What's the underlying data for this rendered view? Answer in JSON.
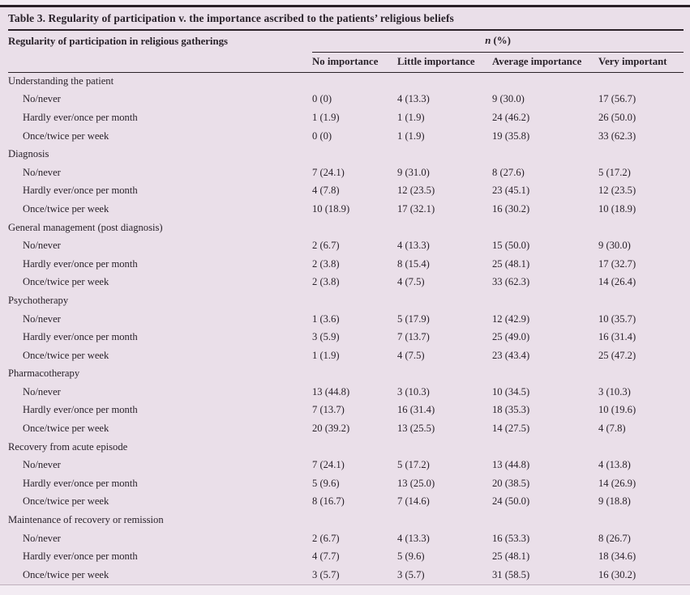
{
  "colors": {
    "page_background": "#f3ecf3",
    "table_background": "#eadfe9",
    "text": "#29222a",
    "rule": "#2a2027"
  },
  "table": {
    "title": "Table 3. Regularity of participation v. the importance ascribed to the patients’ religious beliefs",
    "lead_header": "Regularity of participation in religious gatherings",
    "n_label": {
      "italic": "n",
      "rest": " (%)"
    },
    "columns": [
      "No importance",
      "Little importance",
      "Average importance",
      "Very important"
    ],
    "sections": [
      {
        "label": "Understanding the patient",
        "rows": [
          {
            "label": "No/never",
            "values": [
              "0 (0)",
              "4 (13.3)",
              "9 (30.0)",
              "17 (56.7)"
            ]
          },
          {
            "label": "Hardly ever/once per month",
            "values": [
              "1 (1.9)",
              "1 (1.9)",
              "24 (46.2)",
              "26 (50.0)"
            ]
          },
          {
            "label": "Once/twice per week",
            "values": [
              "0 (0)",
              "1 (1.9)",
              "19 (35.8)",
              "33 (62.3)"
            ]
          }
        ]
      },
      {
        "label": "Diagnosis",
        "rows": [
          {
            "label": "No/never",
            "values": [
              "7 (24.1)",
              "9 (31.0)",
              "8 (27.6)",
              "5 (17.2)"
            ]
          },
          {
            "label": "Hardly ever/once per month",
            "values": [
              "4 (7.8)",
              "12 (23.5)",
              "23 (45.1)",
              "12 (23.5)"
            ]
          },
          {
            "label": "Once/twice per week",
            "values": [
              "10 (18.9)",
              "17 (32.1)",
              "16 (30.2)",
              "10 (18.9)"
            ]
          }
        ]
      },
      {
        "label": "General management (post diagnosis)",
        "rows": [
          {
            "label": "No/never",
            "values": [
              "2 (6.7)",
              "4 (13.3)",
              "15 (50.0)",
              "9 (30.0)"
            ]
          },
          {
            "label": "Hardly ever/once per month",
            "values": [
              "2 (3.8)",
              "8 (15.4)",
              "25 (48.1)",
              "17 (32.7)"
            ]
          },
          {
            "label": "Once/twice per week",
            "values": [
              "2 (3.8)",
              "4 (7.5)",
              "33 (62.3)",
              "14 (26.4)"
            ]
          }
        ]
      },
      {
        "label": "Psychotherapy",
        "rows": [
          {
            "label": "No/never",
            "values": [
              "1 (3.6)",
              "5 (17.9)",
              "12 (42.9)",
              "10 (35.7)"
            ]
          },
          {
            "label": "Hardly ever/once per month",
            "values": [
              "3 (5.9)",
              "7 (13.7)",
              "25 (49.0)",
              "16 (31.4)"
            ]
          },
          {
            "label": "Once/twice per week",
            "values": [
              "1 (1.9)",
              "4 (7.5)",
              "23 (43.4)",
              "25 (47.2)"
            ]
          }
        ]
      },
      {
        "label": "Pharmacotherapy",
        "rows": [
          {
            "label": "No/never",
            "values": [
              "13 (44.8)",
              "3 (10.3)",
              "10 (34.5)",
              "3 (10.3)"
            ]
          },
          {
            "label": "Hardly ever/once per month",
            "values": [
              "7 (13.7)",
              "16 (31.4)",
              "18 (35.3)",
              "10 (19.6)"
            ]
          },
          {
            "label": "Once/twice per week",
            "values": [
              "20 (39.2)",
              "13 (25.5)",
              "14 (27.5)",
              "4 (7.8)"
            ]
          }
        ]
      },
      {
        "label": "Recovery from acute episode",
        "rows": [
          {
            "label": "No/never",
            "values": [
              "7 (24.1)",
              "5 (17.2)",
              "13 (44.8)",
              "4 (13.8)"
            ]
          },
          {
            "label": "Hardly ever/once per month",
            "values": [
              "5 (9.6)",
              "13 (25.0)",
              "20 (38.5)",
              "14 (26.9)"
            ]
          },
          {
            "label": "Once/twice per week",
            "values": [
              "8 (16.7)",
              "7 (14.6)",
              "24 (50.0)",
              "9 (18.8)"
            ]
          }
        ]
      },
      {
        "label": "Maintenance of recovery or remission",
        "rows": [
          {
            "label": "No/never",
            "values": [
              "2 (6.7)",
              "4 (13.3)",
              "16 (53.3)",
              "8 (26.7)"
            ]
          },
          {
            "label": "Hardly ever/once per month",
            "values": [
              "4 (7.7)",
              "5 (9.6)",
              "25 (48.1)",
              "18 (34.6)"
            ]
          },
          {
            "label": "Once/twice per week",
            "values": [
              "3 (5.7)",
              "3 (5.7)",
              "31 (58.5)",
              "16 (30.2)"
            ]
          }
        ]
      }
    ]
  }
}
